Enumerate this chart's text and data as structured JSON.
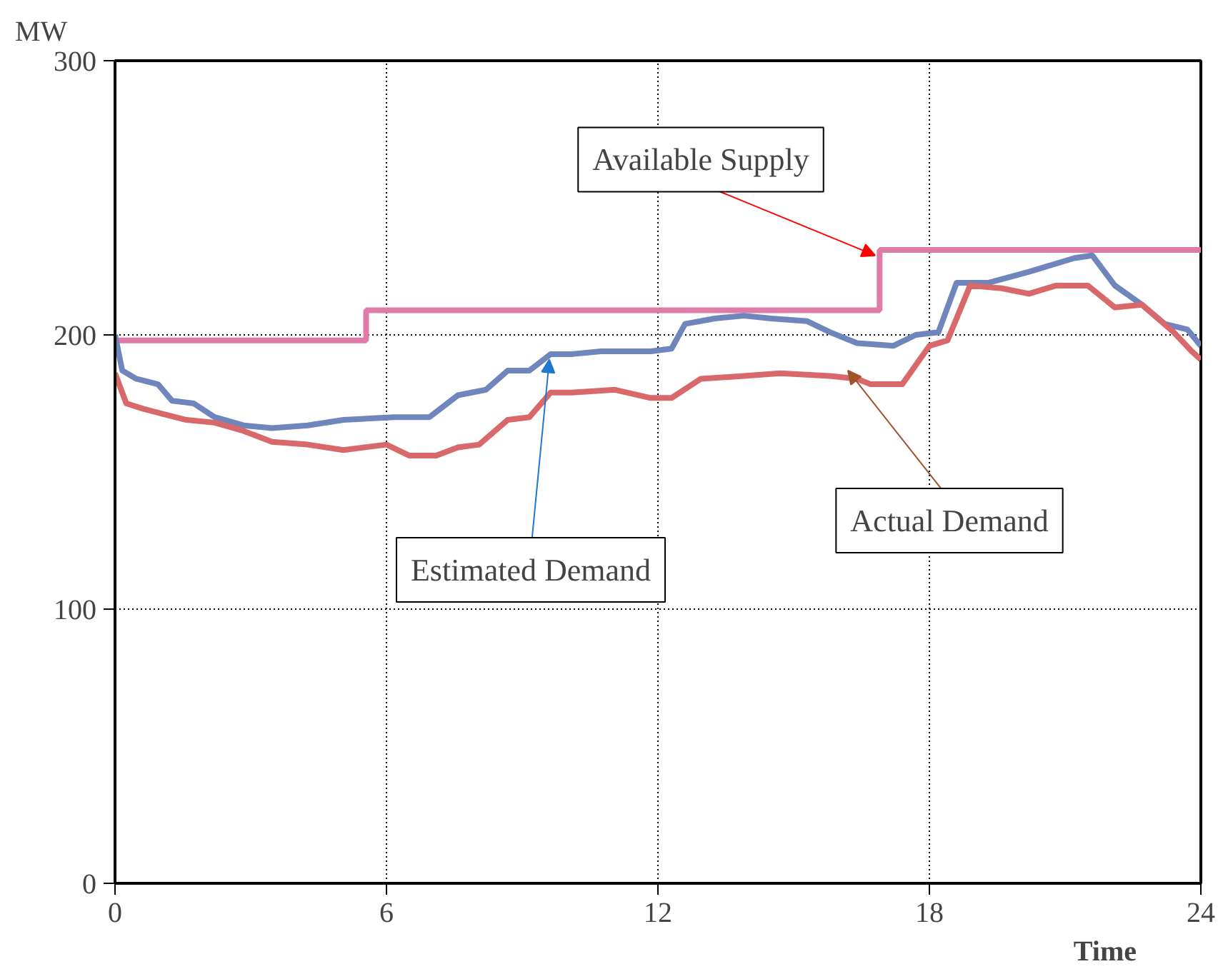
{
  "chart_data": {
    "type": "line",
    "xlabel": "Time",
    "ylabel": "MW",
    "xlim": [
      0,
      24
    ],
    "ylim": [
      0,
      300
    ],
    "xticks": [
      0,
      6,
      12,
      18,
      24
    ],
    "yticks": [
      0,
      100,
      200,
      300
    ],
    "grid": true,
    "series": [
      {
        "type": "step",
        "color": "#e07aa8",
        "x": [
          0,
          5.55,
          16.9,
          24
        ],
        "values": [
          198,
          209,
          231,
          231
        ]
      },
      {
        "color": "#6f86bd",
        "x": [
          0,
          0.16,
          0.47,
          0.95,
          1.26,
          1.74,
          2.2,
          2.84,
          3.47,
          4.26,
          5.05,
          6.16,
          6.95,
          7.58,
          8.2,
          8.68,
          9.16,
          9.63,
          10.1,
          10.74,
          11.84,
          12.3,
          12.6,
          13.26,
          13.9,
          14.5,
          15.3,
          15.8,
          16.4,
          17.2,
          17.7,
          18.2,
          18.6,
          19.3,
          20.2,
          21.2,
          21.6,
          22.1,
          22.7,
          23.2,
          23.7,
          24
        ],
        "values": [
          200,
          187,
          184,
          182,
          176,
          175,
          170,
          167,
          166,
          167,
          169,
          170,
          170,
          178,
          180,
          187,
          187,
          193,
          193,
          194,
          194,
          195,
          204,
          206,
          207,
          206,
          205,
          201,
          197,
          196,
          200,
          201,
          219,
          219,
          223,
          228,
          229,
          218,
          211,
          204,
          202,
          196
        ]
      },
      {
        "color": "#d9686a",
        "x": [
          0,
          0.25,
          0.63,
          1.1,
          1.58,
          2.2,
          2.84,
          3.47,
          4.26,
          5.05,
          6,
          6.5,
          7.1,
          7.58,
          8.05,
          8.68,
          9.16,
          9.63,
          10.1,
          11.05,
          11.84,
          12.3,
          12.95,
          13.9,
          14.7,
          15.8,
          16.4,
          16.7,
          17.4,
          18,
          18.4,
          18.9,
          19.6,
          20.2,
          20.8,
          21.5,
          22.1,
          22.7,
          23.4,
          23.8,
          24
        ],
        "values": [
          186,
          175,
          173,
          171,
          169,
          168,
          165,
          161,
          160,
          158,
          160,
          156,
          156,
          159,
          160,
          169,
          170,
          179,
          179,
          180,
          177,
          177,
          184,
          185,
          186,
          185,
          184,
          182,
          182,
          196,
          198,
          218,
          217,
          215,
          218,
          218,
          210,
          211,
          201,
          194,
          191
        ]
      }
    ],
    "annotations": [
      {
        "text": "Available Supply",
        "x": 16.8,
        "y": 229
      },
      {
        "text": "Estimated Demand",
        "x": 9.6,
        "y": 191
      },
      {
        "text": "Actual Demand",
        "x": 16.2,
        "y": 187
      }
    ]
  }
}
